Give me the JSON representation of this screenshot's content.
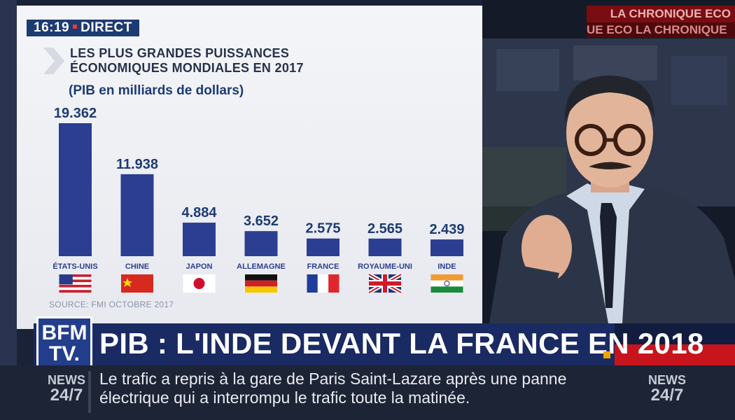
{
  "clock": {
    "time": "16:19",
    "label": "DIRECT"
  },
  "promo": {
    "top": "LA CHRONIQUE ECO",
    "bottom": "UE ECO  LA CHRONIQUE"
  },
  "chart_data": {
    "type": "bar",
    "title": "LES PLUS GRANDES PUISSANCES\nÉCONOMIQUES MONDIALES EN 2017",
    "ylabel": "(PIB en milliards de dollars)",
    "categories": [
      "ÉTATS-UNIS",
      "CHINE",
      "JAPON",
      "ALLEMAGNE",
      "FRANCE",
      "ROYAUME-UNI",
      "INDE"
    ],
    "value_labels": [
      "19.362",
      "11.938",
      "4.884",
      "3.652",
      "2.575",
      "2.565",
      "2.439"
    ],
    "values": [
      19362,
      11938,
      4884,
      3652,
      2575,
      2565,
      2439
    ],
    "ylim": [
      0,
      20000
    ],
    "grid": false,
    "bar_color": "#2b3e91",
    "source": "SOURCE: FMI OCTOBRE 2017"
  },
  "headline": "PIB : L'INDE DEVANT LA FRANCE EN 2018",
  "channel": {
    "logo_line1": "BFM",
    "logo_line2": "TV."
  },
  "ticker": {
    "news_left": "NEWS",
    "news_left_num": "24/7",
    "text": "Le trafic a repris à la gare de Paris Saint-Lazare après une panne électrique qui a interrompu le trafic toute la matinée.",
    "news_right": "NEWS",
    "news_right_num": "24/7"
  },
  "colors": {
    "brand_blue": "#1a2a63",
    "live_red": "#e53935",
    "accent_orange": "#f0a400"
  }
}
